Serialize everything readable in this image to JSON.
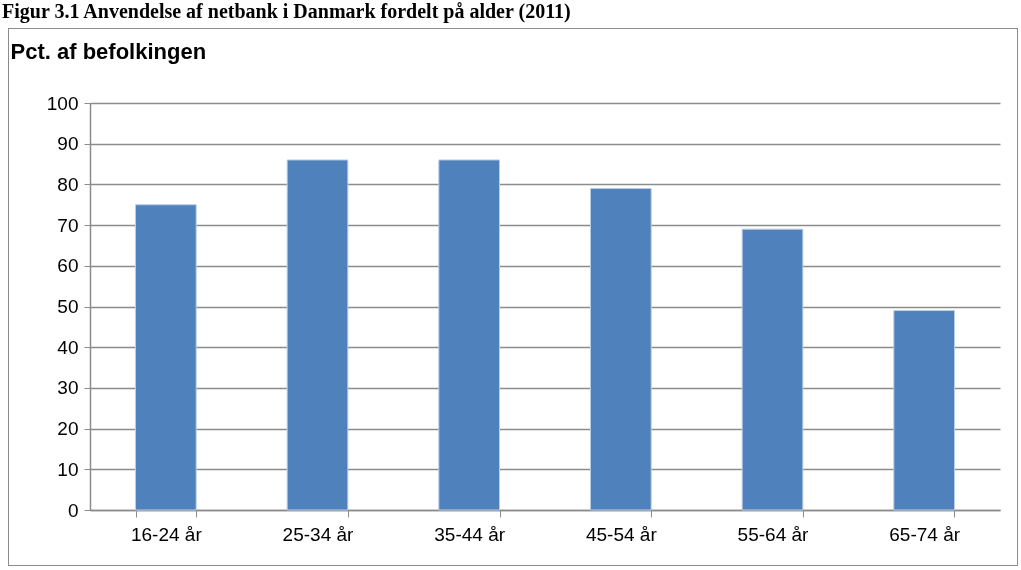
{
  "chart_data": {
    "type": "bar",
    "title": "Figur 3.1 Anvendelse af netbank i Danmark fordelt på alder (2011)",
    "ylabel": "Pct. af befolkingen",
    "categories": [
      "16-24 år",
      "25-34 år",
      "35-44 år",
      "45-54 år",
      "55-64 år",
      "65-74 år"
    ],
    "values": [
      75,
      86,
      86,
      79,
      69,
      49
    ],
    "color": "#4f81bd",
    "ylim": [
      0,
      100
    ],
    "yticks": [
      0,
      10,
      20,
      30,
      40,
      50,
      60,
      70,
      80,
      90,
      100
    ],
    "grid": "y"
  }
}
